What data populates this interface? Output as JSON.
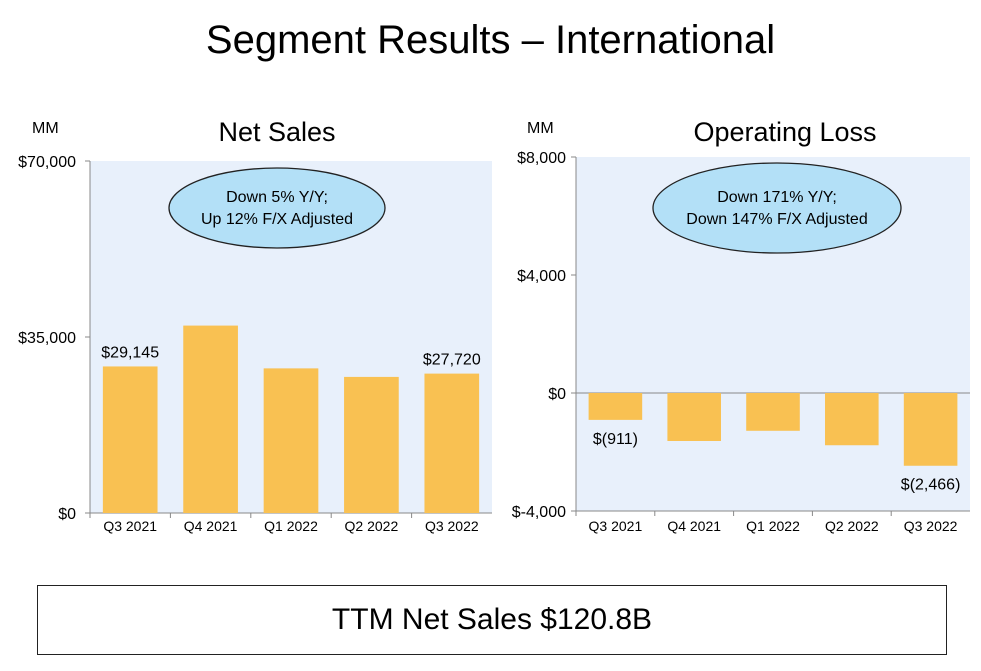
{
  "page": {
    "title": "Segment Results – International",
    "ttm": "TTM Net Sales $120.8B"
  },
  "colors": {
    "bar": "#F9C152",
    "plot_bg": "#E8F0FB",
    "callout_fill": "#B3E0F7",
    "axis": "#888888"
  },
  "chart_data": [
    {
      "type": "bar",
      "title": "Net Sales",
      "unit_label": "MM",
      "categories": [
        "Q3 2021",
        "Q4 2021",
        "Q1 2022",
        "Q2 2022",
        "Q3 2022"
      ],
      "values": [
        29145,
        37270,
        28759,
        27065,
        27720
      ],
      "ylim": [
        0,
        70000
      ],
      "yticks": [
        0,
        35000,
        70000
      ],
      "ytick_labels": [
        "$0",
        "$35,000",
        "$70,000"
      ],
      "data_labels": [
        {
          "index": 0,
          "text": "$29,145"
        },
        {
          "index": 4,
          "text": "$27,720"
        }
      ],
      "callout_lines": [
        "Down 5% Y/Y;",
        "Up 12% F/X Adjusted"
      ]
    },
    {
      "type": "bar",
      "title": "Operating Loss",
      "unit_label": "MM",
      "categories": [
        "Q3 2021",
        "Q4 2021",
        "Q1 2022",
        "Q2 2022",
        "Q3 2022"
      ],
      "values": [
        -911,
        -1627,
        -1281,
        -1771,
        -2466
      ],
      "ylim": [
        -4000,
        8000
      ],
      "yticks": [
        -4000,
        0,
        4000,
        8000
      ],
      "ytick_labels": [
        "$-4,000",
        "$0",
        "$4,000",
        "$8,000"
      ],
      "data_labels": [
        {
          "index": 0,
          "text": "$(911)"
        },
        {
          "index": 4,
          "text": "$(2,466)"
        }
      ],
      "callout_lines": [
        "Down 171% Y/Y;",
        "Down 147% F/X Adjusted"
      ]
    }
  ]
}
